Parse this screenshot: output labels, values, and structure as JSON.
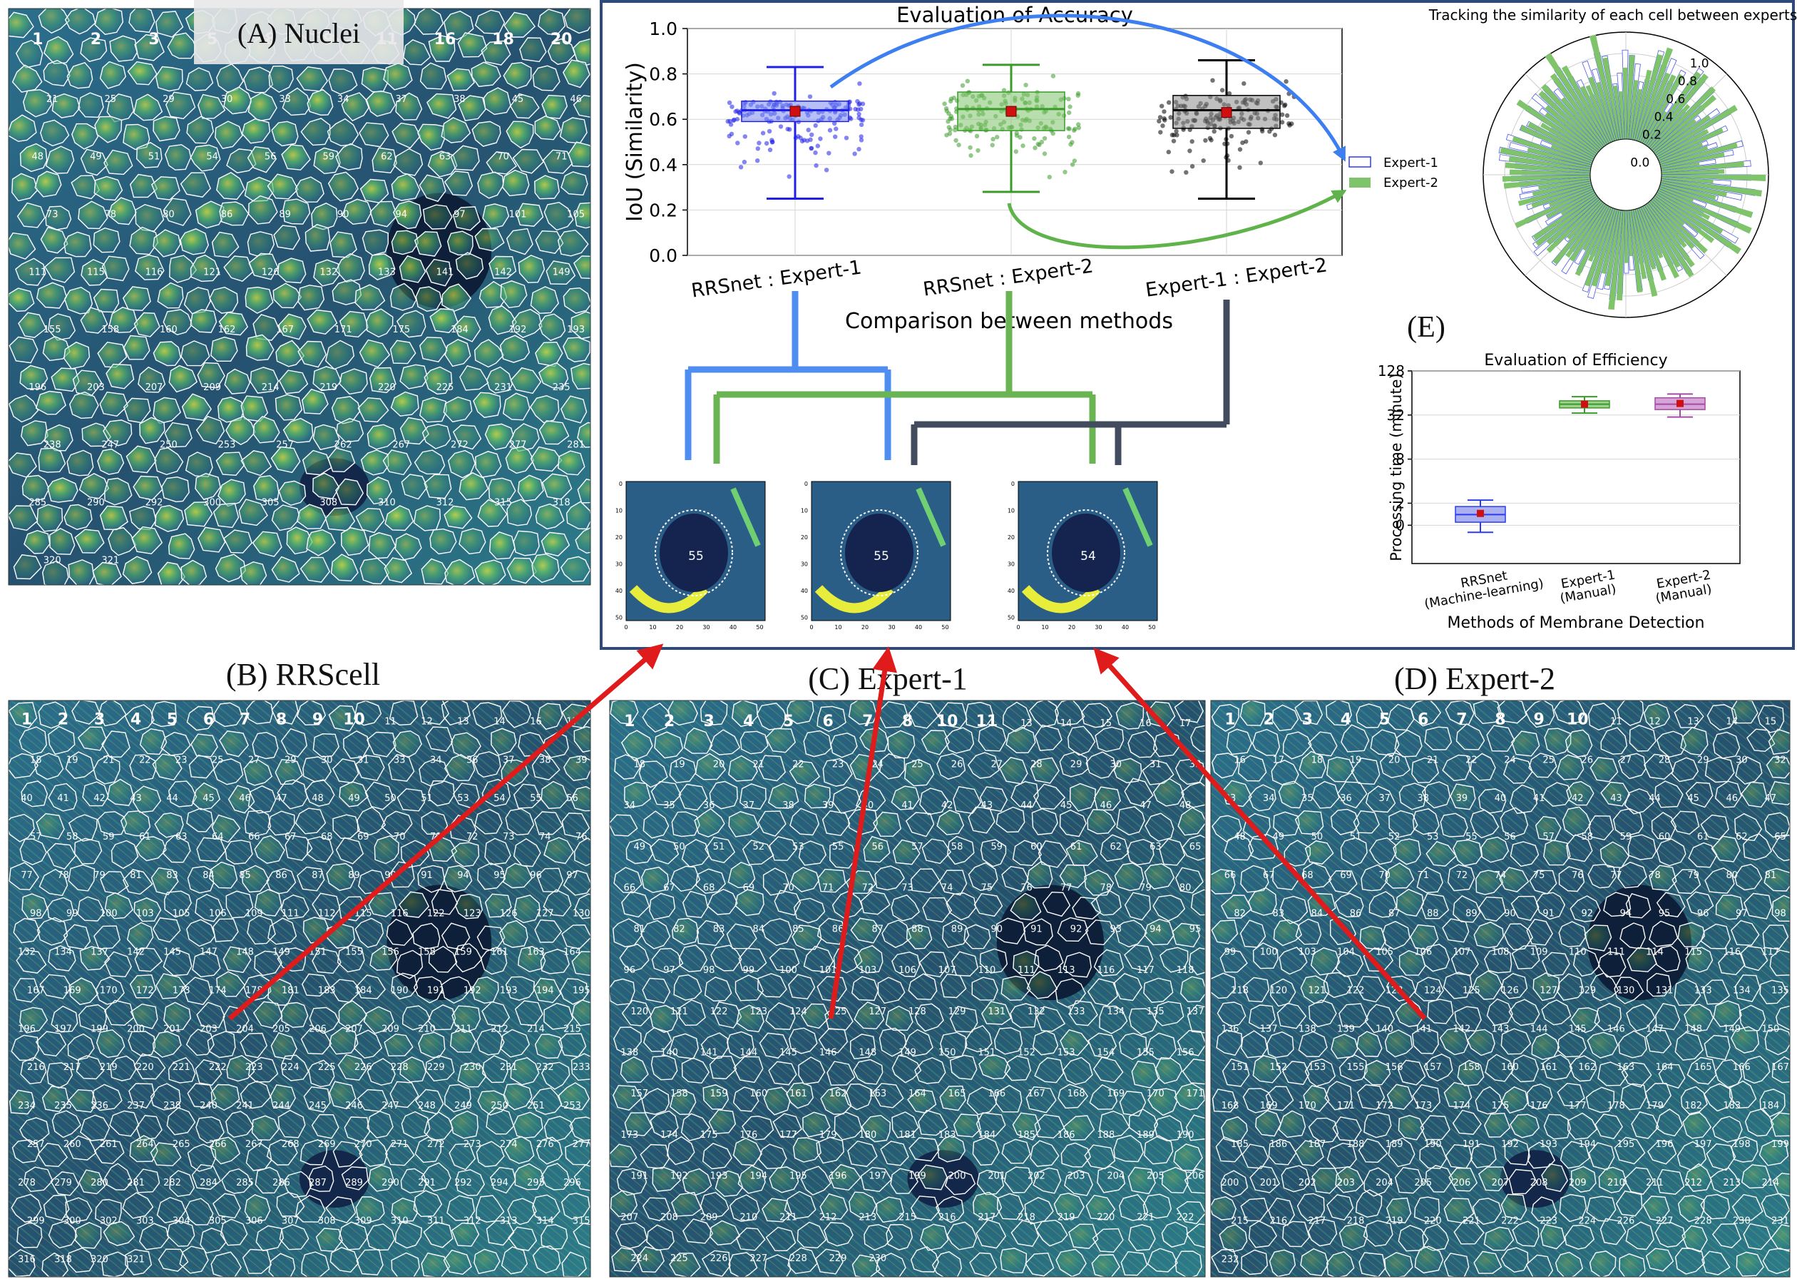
{
  "panels": {
    "a": {
      "title": "(A) Nuclei",
      "labels": [
        "1",
        "2",
        "3",
        "5",
        "8",
        "9",
        "11",
        "16",
        "18",
        "20",
        "21",
        "25",
        "29",
        "30",
        "33",
        "34",
        "37",
        "38",
        "45",
        "46",
        "48",
        "49",
        "51",
        "54",
        "56",
        "59",
        "62",
        "63",
        "70",
        "71",
        "73",
        "78",
        "80",
        "86",
        "89",
        "90",
        "94",
        "97",
        "101",
        "105",
        "111",
        "115",
        "116",
        "121",
        "126",
        "132",
        "133",
        "141",
        "142",
        "149",
        "155",
        "158",
        "160",
        "162",
        "167",
        "171",
        "175",
        "184",
        "192",
        "193",
        "196",
        "203",
        "207",
        "209",
        "214",
        "219",
        "220",
        "225",
        "231",
        "235",
        "238",
        "247",
        "250",
        "253",
        "257",
        "262",
        "267",
        "272",
        "277",
        "281",
        "285",
        "290",
        "292",
        "300",
        "305",
        "308",
        "310",
        "312",
        "315",
        "318",
        "320",
        "321"
      ]
    },
    "b": {
      "title": "(B) RRScell",
      "labels": [
        "1",
        "2",
        "3",
        "4",
        "5",
        "6",
        "7",
        "8",
        "9",
        "10",
        "11",
        "12",
        "13",
        "14",
        "16",
        "17",
        "18",
        "19",
        "21",
        "22",
        "23",
        "25",
        "27",
        "29",
        "30",
        "31",
        "33",
        "34",
        "36",
        "37",
        "38",
        "39",
        "40",
        "41",
        "42",
        "43",
        "44",
        "45",
        "46",
        "47",
        "48",
        "49",
        "50",
        "51",
        "53",
        "54",
        "55",
        "56",
        "57",
        "58",
        "59",
        "61",
        "63",
        "64",
        "66",
        "67",
        "68",
        "69",
        "70",
        "71",
        "72",
        "73",
        "74",
        "76",
        "77",
        "78",
        "79",
        "81",
        "83",
        "84",
        "85",
        "86",
        "87",
        "89",
        "90",
        "91",
        "94",
        "95",
        "96",
        "97",
        "98",
        "99",
        "100",
        "103",
        "105",
        "106",
        "109",
        "111",
        "112",
        "115",
        "116",
        "122",
        "123",
        "126",
        "127",
        "130",
        "132",
        "134",
        "137",
        "142",
        "145",
        "147",
        "148",
        "149",
        "151",
        "155",
        "156",
        "158",
        "159",
        "161",
        "163",
        "164",
        "167",
        "169",
        "170",
        "172",
        "173",
        "174",
        "178",
        "181",
        "183",
        "184",
        "190",
        "191",
        "192",
        "193",
        "194",
        "195",
        "196",
        "197",
        "199",
        "200",
        "201",
        "203",
        "204",
        "205",
        "206",
        "207",
        "209",
        "210",
        "211",
        "212",
        "214",
        "215",
        "216",
        "217",
        "219",
        "220",
        "221",
        "222",
        "223",
        "224",
        "225",
        "226",
        "228",
        "229",
        "230",
        "231",
        "232",
        "233",
        "234",
        "235",
        "236",
        "237",
        "238",
        "240",
        "241",
        "244",
        "245",
        "246",
        "247",
        "248",
        "249",
        "250",
        "251",
        "253",
        "257",
        "260",
        "261",
        "264",
        "265",
        "266",
        "267",
        "268",
        "269",
        "270",
        "271",
        "272",
        "273",
        "274",
        "276",
        "277",
        "278",
        "279",
        "280",
        "281",
        "282",
        "284",
        "285",
        "286",
        "287",
        "289",
        "290",
        "291",
        "292",
        "294",
        "295",
        "296",
        "299",
        "300",
        "302",
        "303",
        "304",
        "305",
        "306",
        "307",
        "308",
        "309",
        "310",
        "311",
        "312",
        "313",
        "314",
        "315",
        "316",
        "318",
        "320",
        "321"
      ]
    },
    "c": {
      "title": "(C) Expert-1",
      "labels": [
        "1",
        "2",
        "3",
        "4",
        "5",
        "6",
        "7",
        "8",
        "10",
        "11",
        "13",
        "14",
        "15",
        "16",
        "17",
        "18",
        "19",
        "20",
        "21",
        "22",
        "23",
        "24",
        "25",
        "26",
        "27",
        "28",
        "29",
        "30",
        "31",
        "33",
        "34",
        "35",
        "36",
        "37",
        "38",
        "39",
        "40",
        "41",
        "42",
        "43",
        "44",
        "45",
        "46",
        "47",
        "48",
        "49",
        "50",
        "51",
        "52",
        "53",
        "55",
        "56",
        "57",
        "58",
        "59",
        "60",
        "61",
        "62",
        "63",
        "65",
        "66",
        "67",
        "68",
        "69",
        "70",
        "71",
        "72",
        "73",
        "74",
        "75",
        "76",
        "77",
        "78",
        "79",
        "80",
        "81",
        "82",
        "83",
        "84",
        "85",
        "86",
        "87",
        "88",
        "89",
        "90",
        "91",
        "92",
        "93",
        "94",
        "95",
        "96",
        "97",
        "98",
        "99",
        "100",
        "101",
        "103",
        "106",
        "107",
        "110",
        "111",
        "113",
        "116",
        "117",
        "118",
        "120",
        "121",
        "122",
        "123",
        "124",
        "125",
        "127",
        "128",
        "129",
        "131",
        "132",
        "133",
        "134",
        "135",
        "137",
        "138",
        "140",
        "141",
        "144",
        "145",
        "146",
        "148",
        "149",
        "150",
        "151",
        "152",
        "153",
        "154",
        "155",
        "156",
        "157",
        "158",
        "159",
        "160",
        "161",
        "162",
        "163",
        "164",
        "165",
        "166",
        "167",
        "168",
        "169",
        "170",
        "171",
        "173",
        "174",
        "175",
        "176",
        "177",
        "179",
        "180",
        "181",
        "183",
        "184",
        "185",
        "186",
        "188",
        "189",
        "190",
        "191",
        "192",
        "193",
        "194",
        "195",
        "196",
        "197",
        "199",
        "200",
        "201",
        "202",
        "203",
        "204",
        "205",
        "206",
        "207",
        "208",
        "209",
        "210",
        "211",
        "212",
        "213",
        "215",
        "216",
        "217",
        "218",
        "219",
        "220",
        "221",
        "222",
        "224",
        "225",
        "226",
        "227",
        "228",
        "229",
        "230"
      ]
    },
    "d": {
      "title": "(D) Expert-2",
      "labels": [
        "1",
        "2",
        "3",
        "4",
        "5",
        "6",
        "7",
        "8",
        "9",
        "10",
        "11",
        "12",
        "13",
        "14",
        "15",
        "16",
        "17",
        "18",
        "19",
        "20",
        "21",
        "22",
        "24",
        "25",
        "26",
        "27",
        "28",
        "29",
        "30",
        "32",
        "33",
        "34",
        "35",
        "36",
        "37",
        "38",
        "39",
        "40",
        "41",
        "42",
        "43",
        "44",
        "45",
        "46",
        "47",
        "48",
        "49",
        "50",
        "51",
        "52",
        "53",
        "55",
        "56",
        "57",
        "58",
        "59",
        "60",
        "61",
        "62",
        "65",
        "66",
        "67",
        "68",
        "69",
        "70",
        "71",
        "72",
        "74",
        "75",
        "76",
        "77",
        "78",
        "79",
        "80",
        "81",
        "82",
        "83",
        "84",
        "86",
        "87",
        "88",
        "89",
        "90",
        "91",
        "92",
        "94",
        "95",
        "96",
        "97",
        "98",
        "99",
        "100",
        "103",
        "104",
        "105",
        "106",
        "107",
        "108",
        "109",
        "110",
        "111",
        "114",
        "115",
        "116",
        "117",
        "118",
        "120",
        "121",
        "122",
        "123",
        "124",
        "125",
        "126",
        "127",
        "129",
        "130",
        "131",
        "133",
        "134",
        "135",
        "136",
        "137",
        "138",
        "139",
        "140",
        "141",
        "142",
        "143",
        "144",
        "145",
        "146",
        "147",
        "148",
        "149",
        "150",
        "151",
        "152",
        "153",
        "155",
        "156",
        "157",
        "158",
        "160",
        "161",
        "162",
        "163",
        "164",
        "165",
        "166",
        "167",
        "168",
        "169",
        "170",
        "171",
        "172",
        "173",
        "174",
        "175",
        "176",
        "177",
        "178",
        "179",
        "182",
        "183",
        "184",
        "185",
        "186",
        "187",
        "188",
        "189",
        "190",
        "191",
        "192",
        "193",
        "194",
        "195",
        "196",
        "197",
        "198",
        "199",
        "200",
        "201",
        "202",
        "203",
        "204",
        "205",
        "206",
        "207",
        "208",
        "209",
        "210",
        "211",
        "212",
        "213",
        "214",
        "215",
        "216",
        "217",
        "218",
        "219",
        "220",
        "221",
        "222",
        "223",
        "224",
        "226",
        "227",
        "228",
        "230",
        "231",
        "232"
      ]
    },
    "e": {
      "label": "(E)"
    }
  },
  "accuracy": {
    "title": "Evaluation of Accuracy",
    "xlabel": "Comparison between methods",
    "ylabel": "IoU (Similarity)",
    "y_ticks": [
      "0.0",
      "0.2",
      "0.4",
      "0.6",
      "0.8",
      "1.0"
    ],
    "colors": [
      "#1f1fe8",
      "#3a9a2a",
      "#000000"
    ],
    "fill_colors": [
      "#7a8cf0",
      "#7fc36b",
      "#8c8c8c"
    ],
    "legend": [
      "Expert-1",
      "Expert-2"
    ]
  },
  "polar": {
    "title": "Tracking the similarity of each cell between experts",
    "r_ticks": [
      "0.0",
      "0.2",
      "0.4",
      "0.6",
      "0.8",
      "1.0"
    ],
    "legend": [
      "Expert-1",
      "Expert-2"
    ]
  },
  "efficiency": {
    "title": "Evaluation of Efficiency",
    "xlabel": "Methods of Membrane Detection",
    "ylabel": "Processing time (minute)",
    "y_ticks": [
      "0",
      "2",
      "8",
      "32",
      "128"
    ],
    "categories": [
      [
        "RRSnet",
        "(Machine-learning)"
      ],
      [
        "Expert-1",
        "(Manual)"
      ],
      [
        "Expert-2",
        "(Manual)"
      ]
    ]
  },
  "insets": {
    "labels": [
      "55",
      "55",
      "54"
    ],
    "ticks": [
      "0",
      "10",
      "20",
      "30",
      "40",
      "50"
    ]
  },
  "chart_data": [
    {
      "type": "box",
      "title": "Evaluation of Accuracy",
      "xlabel": "Comparison between methods",
      "ylabel": "IoU (Similarity)",
      "ylim": [
        0,
        1.0
      ],
      "categories": [
        "RRSnet : Expert-1",
        "RRSnet : Expert-2",
        "Expert-1 : Expert-2"
      ],
      "series": [
        {
          "q1": 0.59,
          "median": 0.64,
          "q3": 0.68,
          "mean": 0.635,
          "whisker_low": 0.25,
          "whisker_high": 0.83
        },
        {
          "q1": 0.55,
          "median": 0.645,
          "q3": 0.72,
          "mean": 0.635,
          "whisker_low": 0.28,
          "whisker_high": 0.84
        },
        {
          "q1": 0.56,
          "median": 0.64,
          "q3": 0.705,
          "mean": 0.63,
          "whisker_low": 0.25,
          "whisker_high": 0.86
        }
      ]
    },
    {
      "type": "box",
      "title": "Evaluation of Efficiency",
      "xlabel": "Methods of Membrane Detection",
      "ylabel": "Processing time (minute)",
      "yscale": "log2",
      "ylim": [
        0.3,
        128
      ],
      "categories": [
        "RRSnet (Machine-learning)",
        "Expert-1 (Manual)",
        "Expert-2 (Manual)"
      ],
      "series": [
        {
          "q1": 1.1,
          "median": 1.4,
          "q3": 1.8,
          "mean": 1.45,
          "whisker_low": 0.8,
          "whisker_high": 2.2
        },
        {
          "q1": 40,
          "median": 45,
          "q3": 50,
          "mean": 45,
          "whisker_low": 34,
          "whisker_high": 57
        },
        {
          "q1": 38,
          "median": 45,
          "q3": 55,
          "mean": 46,
          "whisker_low": 30,
          "whisker_high": 62
        }
      ]
    },
    {
      "type": "polar-bar",
      "title": "Tracking the similarity of each cell between experts",
      "rlim": [
        0,
        1.0
      ],
      "series": [
        {
          "name": "Expert-1"
        },
        {
          "name": "Expert-2"
        }
      ]
    }
  ]
}
